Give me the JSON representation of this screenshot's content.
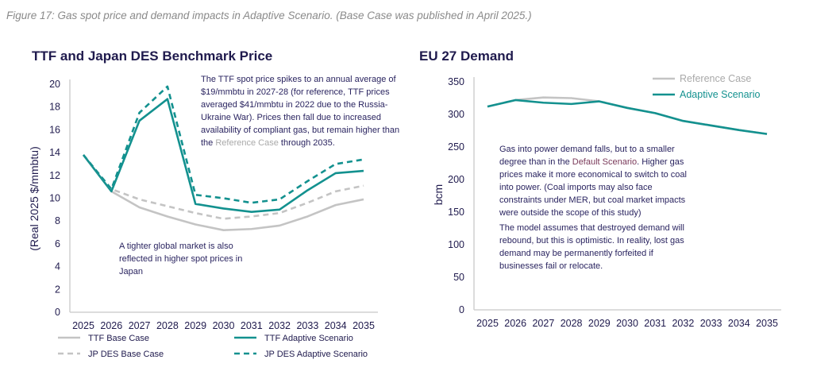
{
  "caption": "Figure 17: Gas spot price and demand impacts in Adaptive Scenario. (Base Case was published in April 2025.)",
  "colors": {
    "teal": "#13918f",
    "grey": "#c4c4c4",
    "text": "#1f1a4d"
  },
  "chart_data": [
    {
      "type": "line",
      "title": "TTF and Japan DES Benchmark Price",
      "xlabel": "",
      "ylabel": "(Real 2025 $/mmbtu)",
      "ylim": [
        0,
        20
      ],
      "yticks": [
        0,
        2,
        4,
        6,
        8,
        10,
        12,
        14,
        16,
        18,
        20
      ],
      "categories": [
        "2025",
        "2026",
        "2027",
        "2028",
        "2029",
        "2030",
        "2031",
        "2032",
        "2033",
        "2034",
        "2035"
      ],
      "legend": "bottom",
      "series": [
        {
          "name": "TTF Base Case",
          "color": "#c4c4c4",
          "dash": false,
          "values": [
            13.8,
            10.6,
            9.2,
            8.4,
            7.7,
            7.2,
            7.3,
            7.6,
            8.4,
            9.4,
            9.9
          ]
        },
        {
          "name": "TTF Adaptive Scenario",
          "color": "#13918f",
          "dash": false,
          "values": [
            13.8,
            10.6,
            16.8,
            18.7,
            9.5,
            9.1,
            8.8,
            9.0,
            10.7,
            12.2,
            12.4
          ]
        },
        {
          "name": "JP DES Base Case",
          "color": "#c4c4c4",
          "dash": true,
          "values": [
            13.8,
            10.8,
            9.9,
            9.3,
            8.7,
            8.2,
            8.4,
            8.7,
            9.6,
            10.6,
            11.1
          ]
        },
        {
          "name": "JP DES Adaptive Scenario",
          "color": "#13918f",
          "dash": true,
          "values": [
            13.8,
            10.8,
            17.5,
            19.8,
            10.3,
            10.0,
            9.6,
            9.9,
            11.5,
            13.0,
            13.4
          ]
        }
      ],
      "annotations": {
        "top_a": "The TTF spot price spikes to an annual average of $19/mmbtu in 2027-28 (for reference, TTF prices averaged $41/mmbtu in 2022 due to the Russia-Ukraine War). Prices then fall due to increased availability of compliant gas, but remain higher than the ",
        "top_ref": "Reference Case",
        "top_b": " through 2035.",
        "bottom": "A tighter global market is also reflected in higher spot prices in Japan"
      }
    },
    {
      "type": "line",
      "title": "EU 27 Demand",
      "xlabel": "",
      "ylabel": "bcm",
      "ylim": [
        0,
        350
      ],
      "yticks": [
        0,
        50,
        100,
        150,
        200,
        250,
        300,
        350
      ],
      "categories": [
        "2025",
        "2026",
        "2027",
        "2028",
        "2029",
        "2030",
        "2031",
        "2032",
        "2033",
        "2034",
        "2035"
      ],
      "legend": "top-right",
      "series": [
        {
          "name": "Reference Case",
          "color": "#c4c4c4",
          "dash": false,
          "values": [
            312,
            322,
            326,
            325,
            320,
            310,
            302,
            290,
            283,
            276,
            270
          ]
        },
        {
          "name": "Adaptive Scenario",
          "color": "#13918f",
          "dash": false,
          "values": [
            312,
            322,
            318,
            316,
            320,
            310,
            302,
            290,
            283,
            276,
            270
          ]
        }
      ],
      "annotations": {
        "p1a": "Gas into power demand falls, but to a smaller degree than in the ",
        "p1def": "Default Scenario",
        "p1b": ". Higher gas prices make it more economical to switch to coal into power. (Coal imports may also face constraints under MER, but coal market impacts were outside the scope of this study)",
        "p2": "The model assumes that destroyed demand will rebound, but this is optimistic. In reality, lost gas demand may be permanently forfeited if businesses fail or relocate."
      }
    }
  ]
}
